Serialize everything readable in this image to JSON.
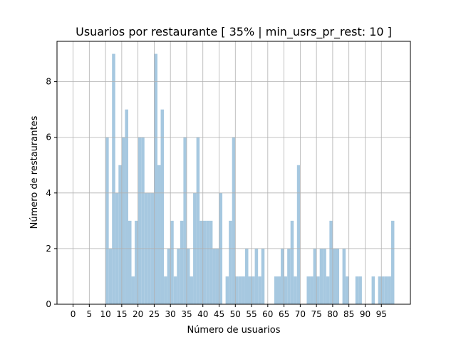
{
  "chart_data": {
    "type": "histogram",
    "title": "Usuarios por restaurante [ 35% | min_usrs_pr_rest: 10 ]",
    "xlabel": "Número de usuarios",
    "ylabel": "Número de restaurantes",
    "bins": [
      10,
      11,
      12,
      13,
      14,
      15,
      16,
      17,
      18,
      19,
      20,
      21,
      22,
      23,
      24,
      25,
      26,
      27,
      28,
      29,
      30,
      31,
      32,
      33,
      34,
      35,
      36,
      37,
      38,
      39,
      40,
      41,
      42,
      43,
      44,
      45,
      46,
      47,
      48,
      49,
      50,
      51,
      52,
      53,
      54,
      55,
      56,
      57,
      58,
      59,
      60,
      61,
      62,
      63,
      64,
      65,
      66,
      67,
      68,
      69,
      70,
      71,
      72,
      73,
      74,
      75,
      76,
      77,
      78,
      79,
      80,
      81,
      82,
      83,
      84,
      85,
      86,
      87,
      88,
      89,
      90,
      91,
      92,
      93,
      94,
      95,
      96,
      97,
      98,
      99
    ],
    "values": [
      6,
      2,
      9,
      4,
      5,
      6,
      7,
      3,
      1,
      3,
      6,
      6,
      4,
      4,
      4,
      9,
      5,
      7,
      1,
      2,
      3,
      1,
      2,
      3,
      6,
      2,
      1,
      4,
      6,
      3,
      3,
      3,
      3,
      2,
      2,
      4,
      0,
      1,
      3,
      6,
      1,
      1,
      1,
      2,
      1,
      1,
      2,
      1,
      2,
      0,
      0,
      0,
      1,
      1,
      2,
      1,
      2,
      3,
      1,
      5,
      0,
      0,
      1,
      1,
      2,
      1,
      2,
      2,
      1,
      3,
      2,
      2,
      0,
      2,
      1,
      0,
      0,
      1,
      1,
      0,
      0,
      0,
      1,
      0,
      1,
      1,
      1,
      1,
      3
    ],
    "color": "#a6c8e0",
    "xlim": [
      -4.95,
      103.95
    ],
    "ylim": [
      0,
      9.45
    ],
    "xticks": [
      0,
      5,
      10,
      15,
      20,
      25,
      30,
      35,
      40,
      45,
      50,
      55,
      60,
      65,
      70,
      75,
      80,
      85,
      90,
      95
    ],
    "yticks": [
      0,
      2,
      4,
      6,
      8
    ],
    "grid": true
  }
}
